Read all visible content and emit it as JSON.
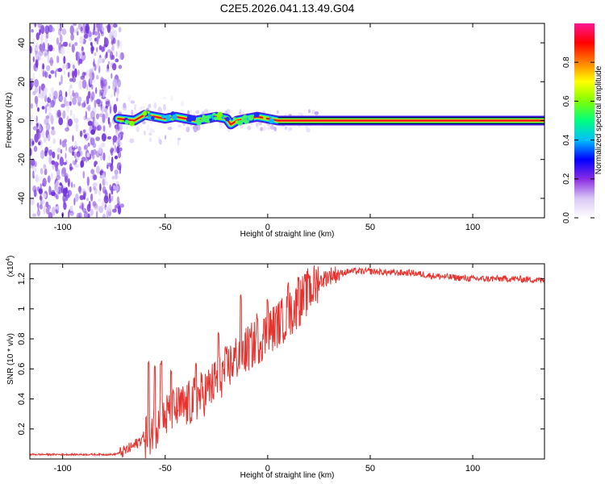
{
  "title": "C2E5.2026.041.13.49.G04",
  "spectrogram": {
    "type": "heatmap",
    "xlabel": "Height of straight line (km)",
    "ylabel": "Frequency (Hz)",
    "xlim": [
      -116,
      135
    ],
    "ylim": [
      -50,
      50
    ],
    "xticks": [
      -100,
      -50,
      0,
      50,
      100
    ],
    "yticks": [
      -40,
      -20,
      0,
      20,
      40
    ],
    "noise_region_km": [
      -116,
      -71
    ],
    "signal_start_km": -75,
    "trace": [
      {
        "x": -73,
        "y": 1
      },
      {
        "x": -65,
        "y": 0
      },
      {
        "x": -60,
        "y": 3
      },
      {
        "x": -55,
        "y": 2
      },
      {
        "x": -50,
        "y": 1
      },
      {
        "x": -45,
        "y": 2
      },
      {
        "x": -40,
        "y": 1
      },
      {
        "x": -35,
        "y": 0
      },
      {
        "x": -30,
        "y": 1
      },
      {
        "x": -25,
        "y": 2
      },
      {
        "x": -20,
        "y": 1
      },
      {
        "x": -18,
        "y": -2
      },
      {
        "x": -15,
        "y": 0
      },
      {
        "x": -10,
        "y": 1
      },
      {
        "x": -5,
        "y": 2
      },
      {
        "x": 0,
        "y": 1
      },
      {
        "x": 5,
        "y": 0
      },
      {
        "x": 135,
        "y": 0
      }
    ]
  },
  "colorbar": {
    "label": "Normalized spectral amplitude",
    "range": [
      0.0,
      1.0
    ],
    "ticks": [
      "0.0",
      "0.2",
      "0.4",
      "0.6",
      "0.8"
    ],
    "tick_values": [
      0.0,
      0.2,
      0.4,
      0.6,
      0.8
    ],
    "stops": [
      "#ffffff",
      "#d9c8f5",
      "#8a2be2",
      "#0000ff",
      "#00bfff",
      "#00ff7f",
      "#7fff00",
      "#ffff00",
      "#ff7f00",
      "#ff0000",
      "#ff1493"
    ]
  },
  "snr": {
    "type": "line",
    "xlabel": "Height of straight line (km)",
    "ylabel": "SNR (10 * v/v)",
    "scale_label_base": "(x10",
    "scale_label_exp": "4",
    "scale_label_close": ")",
    "xlim": [
      -116,
      135
    ],
    "ylim": [
      0.0,
      1.3
    ],
    "xticks": [
      -100,
      -50,
      0,
      50,
      100
    ],
    "yticks": [
      0.2,
      0.4,
      0.6,
      0.8,
      1.0,
      1.2
    ],
    "color": "#e8322e",
    "envelope": [
      [
        -116,
        0.03
      ],
      [
        -90,
        0.03
      ],
      [
        -75,
        0.03
      ],
      [
        -70,
        0.05
      ],
      [
        -65,
        0.09
      ],
      [
        -60,
        0.15
      ],
      [
        -55,
        0.22
      ],
      [
        -50,
        0.28
      ],
      [
        -45,
        0.33
      ],
      [
        -40,
        0.35
      ],
      [
        -35,
        0.4
      ],
      [
        -30,
        0.45
      ],
      [
        -25,
        0.52
      ],
      [
        -20,
        0.6
      ],
      [
        -15,
        0.68
      ],
      [
        -10,
        0.73
      ],
      [
        -5,
        0.78
      ],
      [
        0,
        0.84
      ],
      [
        5,
        0.9
      ],
      [
        10,
        0.95
      ],
      [
        15,
        1.03
      ],
      [
        20,
        1.12
      ],
      [
        25,
        1.18
      ],
      [
        30,
        1.22
      ],
      [
        40,
        1.25
      ],
      [
        50,
        1.25
      ],
      [
        60,
        1.24
      ],
      [
        70,
        1.24
      ],
      [
        80,
        1.22
      ],
      [
        90,
        1.21
      ],
      [
        100,
        1.2
      ],
      [
        110,
        1.2
      ],
      [
        120,
        1.2
      ],
      [
        135,
        1.19
      ]
    ],
    "peaks": [
      [
        -58,
        0.67
      ],
      [
        -55,
        0.62
      ],
      [
        -52,
        0.66
      ],
      [
        -47,
        0.6
      ],
      [
        -35,
        0.65
      ],
      [
        -24,
        0.86
      ],
      [
        -13,
        1.1
      ],
      [
        -5,
        0.97
      ],
      [
        0,
        1.07
      ],
      [
        10,
        1.18
      ],
      [
        15,
        1.22
      ],
      [
        20,
        1.24
      ]
    ]
  }
}
